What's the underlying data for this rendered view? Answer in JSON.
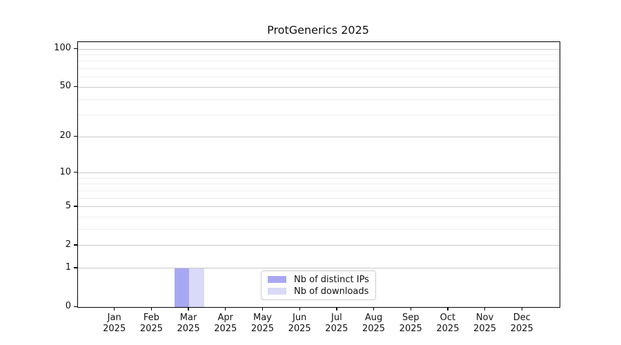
{
  "chart_data": {
    "type": "bar",
    "title": "ProtGenerics 2025",
    "x_tick_year": "2025",
    "categories": [
      "Jan",
      "Feb",
      "Mar",
      "Apr",
      "May",
      "Jun",
      "Jul",
      "Aug",
      "Sep",
      "Oct",
      "Nov",
      "Dec"
    ],
    "series": [
      {
        "name": "Nb of distinct IPs",
        "color": "#a8a8f2",
        "values": [
          0,
          0,
          1,
          0,
          0,
          0,
          0,
          0,
          0,
          0,
          0,
          0
        ]
      },
      {
        "name": "Nb of downloads",
        "color": "#d9d9f8",
        "values": [
          0,
          0,
          1,
          0,
          0,
          0,
          0,
          0,
          0,
          0,
          0,
          0
        ]
      }
    ],
    "yscale": "log1p",
    "ylabel": "",
    "xlabel": "",
    "y_major_ticks": [
      0,
      1,
      2,
      5,
      10,
      20,
      50,
      100
    ],
    "y_minor_gridlines": [
      3,
      4,
      6,
      7,
      8,
      9,
      30,
      40,
      60,
      70,
      80,
      90
    ],
    "ylim": [
      0,
      113
    ],
    "grid": true,
    "legend_position": "lower center",
    "colors": {
      "major_grid": "#c9c9c9",
      "minor_grid": "#ededed",
      "axis": "#000000",
      "background": "#ffffff",
      "text": "#111111"
    }
  }
}
